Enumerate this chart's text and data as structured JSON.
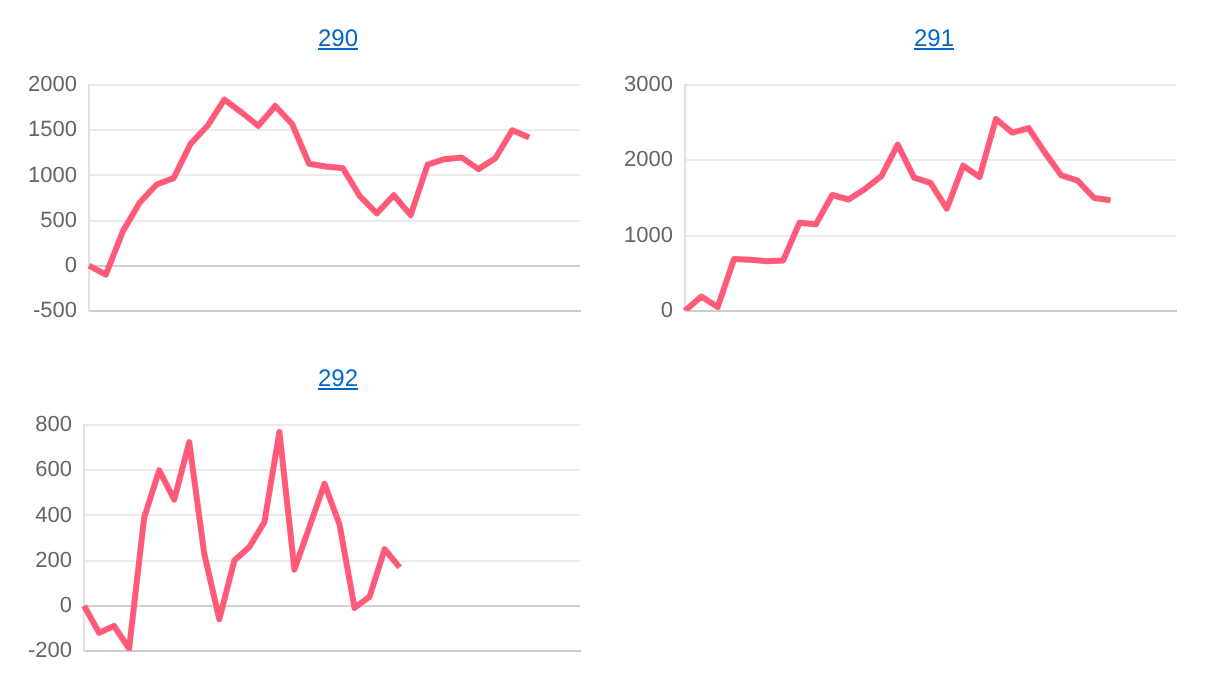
{
  "chart_data": [
    {
      "type": "line",
      "title": "290",
      "categories": [
        null,
        null,
        null,
        null,
        null,
        null,
        null,
        null,
        null,
        null,
        null,
        null,
        null,
        null,
        null,
        null,
        null,
        null,
        null,
        null,
        null,
        null,
        null,
        null,
        null,
        null,
        null,
        null,
        null,
        null
      ],
      "tick_labels": "y",
      "grid": "y",
      "ylim": [
        -500,
        2000
      ],
      "yticks": [
        -500,
        0,
        500,
        1000,
        1500,
        2000
      ],
      "series": [
        {
          "color": "#ff5a78",
          "values": [
            0,
            -100,
            380,
            700,
            900,
            970,
            1350,
            1550,
            1840,
            1700,
            1550,
            1770,
            1570,
            1130,
            1100,
            1080,
            770,
            580,
            780,
            560,
            1120,
            1180,
            1200,
            1070,
            1190,
            1500,
            1420,
            null,
            null,
            null
          ]
        }
      ]
    },
    {
      "type": "line",
      "title": "291",
      "categories": [
        null,
        null,
        null,
        null,
        null,
        null,
        null,
        null,
        null,
        null,
        null,
        null,
        null,
        null,
        null,
        null,
        null,
        null,
        null,
        null,
        null,
        null,
        null,
        null,
        null,
        null,
        null,
        null,
        null,
        null,
        null
      ],
      "tick_labels": "y",
      "grid": "y",
      "ylim": [
        0,
        3000
      ],
      "yticks": [
        0,
        1000,
        2000,
        3000
      ],
      "series": [
        {
          "color": "#ff5a78",
          "values": [
            0,
            190,
            50,
            690,
            680,
            660,
            670,
            1170,
            1150,
            1540,
            1480,
            1620,
            1790,
            2210,
            1770,
            1700,
            1360,
            1930,
            1780,
            2550,
            2370,
            2430,
            2100,
            1800,
            1730,
            1500,
            1470,
            null,
            null,
            null,
            null
          ]
        }
      ]
    },
    {
      "type": "line",
      "title": "292",
      "categories": [
        null,
        null,
        null,
        null,
        null,
        null,
        null,
        null,
        null,
        null,
        null,
        null,
        null,
        null,
        null,
        null,
        null,
        null,
        null,
        null,
        null,
        null,
        null,
        null,
        null,
        null,
        null,
        null,
        null,
        null,
        null,
        null,
        null,
        null
      ],
      "tick_labels": "y",
      "grid": "y",
      "ylim": [
        -200,
        800
      ],
      "yticks": [
        -200,
        0,
        200,
        400,
        600,
        800
      ],
      "series": [
        {
          "color": "#ff5a78",
          "values": [
            0,
            -120,
            -90,
            -190,
            390,
            600,
            470,
            725,
            230,
            -60,
            200,
            260,
            370,
            770,
            160,
            350,
            540,
            360,
            -10,
            40,
            250,
            170,
            null,
            null,
            null,
            null,
            null,
            null,
            null,
            null,
            null,
            null,
            null,
            null
          ]
        }
      ]
    }
  ]
}
